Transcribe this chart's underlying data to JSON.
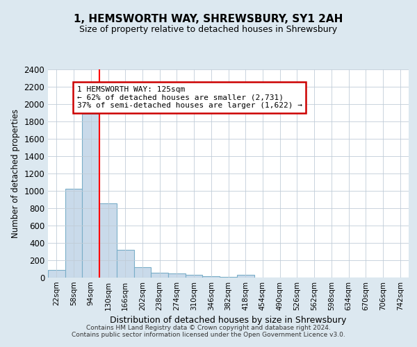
{
  "title": "1, HEMSWORTH WAY, SHREWSBURY, SY1 2AH",
  "subtitle": "Size of property relative to detached houses in Shrewsbury",
  "xlabel": "Distribution of detached houses by size in Shrewsbury",
  "ylabel": "Number of detached properties",
  "categories": [
    "22sqm",
    "58sqm",
    "94sqm",
    "130sqm",
    "166sqm",
    "202sqm",
    "238sqm",
    "274sqm",
    "310sqm",
    "346sqm",
    "382sqm",
    "418sqm",
    "454sqm",
    "490sqm",
    "526sqm",
    "562sqm",
    "598sqm",
    "634sqm",
    "670sqm",
    "706sqm",
    "742sqm"
  ],
  "values": [
    90,
    1025,
    1890,
    860,
    320,
    120,
    55,
    45,
    30,
    20,
    10,
    30,
    0,
    0,
    0,
    0,
    0,
    0,
    0,
    0,
    0
  ],
  "bar_color": "#c9daea",
  "bar_edge_color": "#7aaec8",
  "red_line_x": 2.5,
  "annotation_text": "1 HEMSWORTH WAY: 125sqm\n← 62% of detached houses are smaller (2,731)\n37% of semi-detached houses are larger (1,622) →",
  "annotation_box_color": "#ffffff",
  "annotation_box_edge": "#cc0000",
  "ylim": [
    0,
    2400
  ],
  "yticks": [
    0,
    200,
    400,
    600,
    800,
    1000,
    1200,
    1400,
    1600,
    1800,
    2000,
    2200,
    2400
  ],
  "footer": "Contains HM Land Registry data © Crown copyright and database right 2024.\nContains public sector information licensed under the Open Government Licence v3.0.",
  "fig_bg_color": "#dce8f0",
  "plot_bg_color": "#ffffff",
  "grid_color": "#c0ccd8"
}
